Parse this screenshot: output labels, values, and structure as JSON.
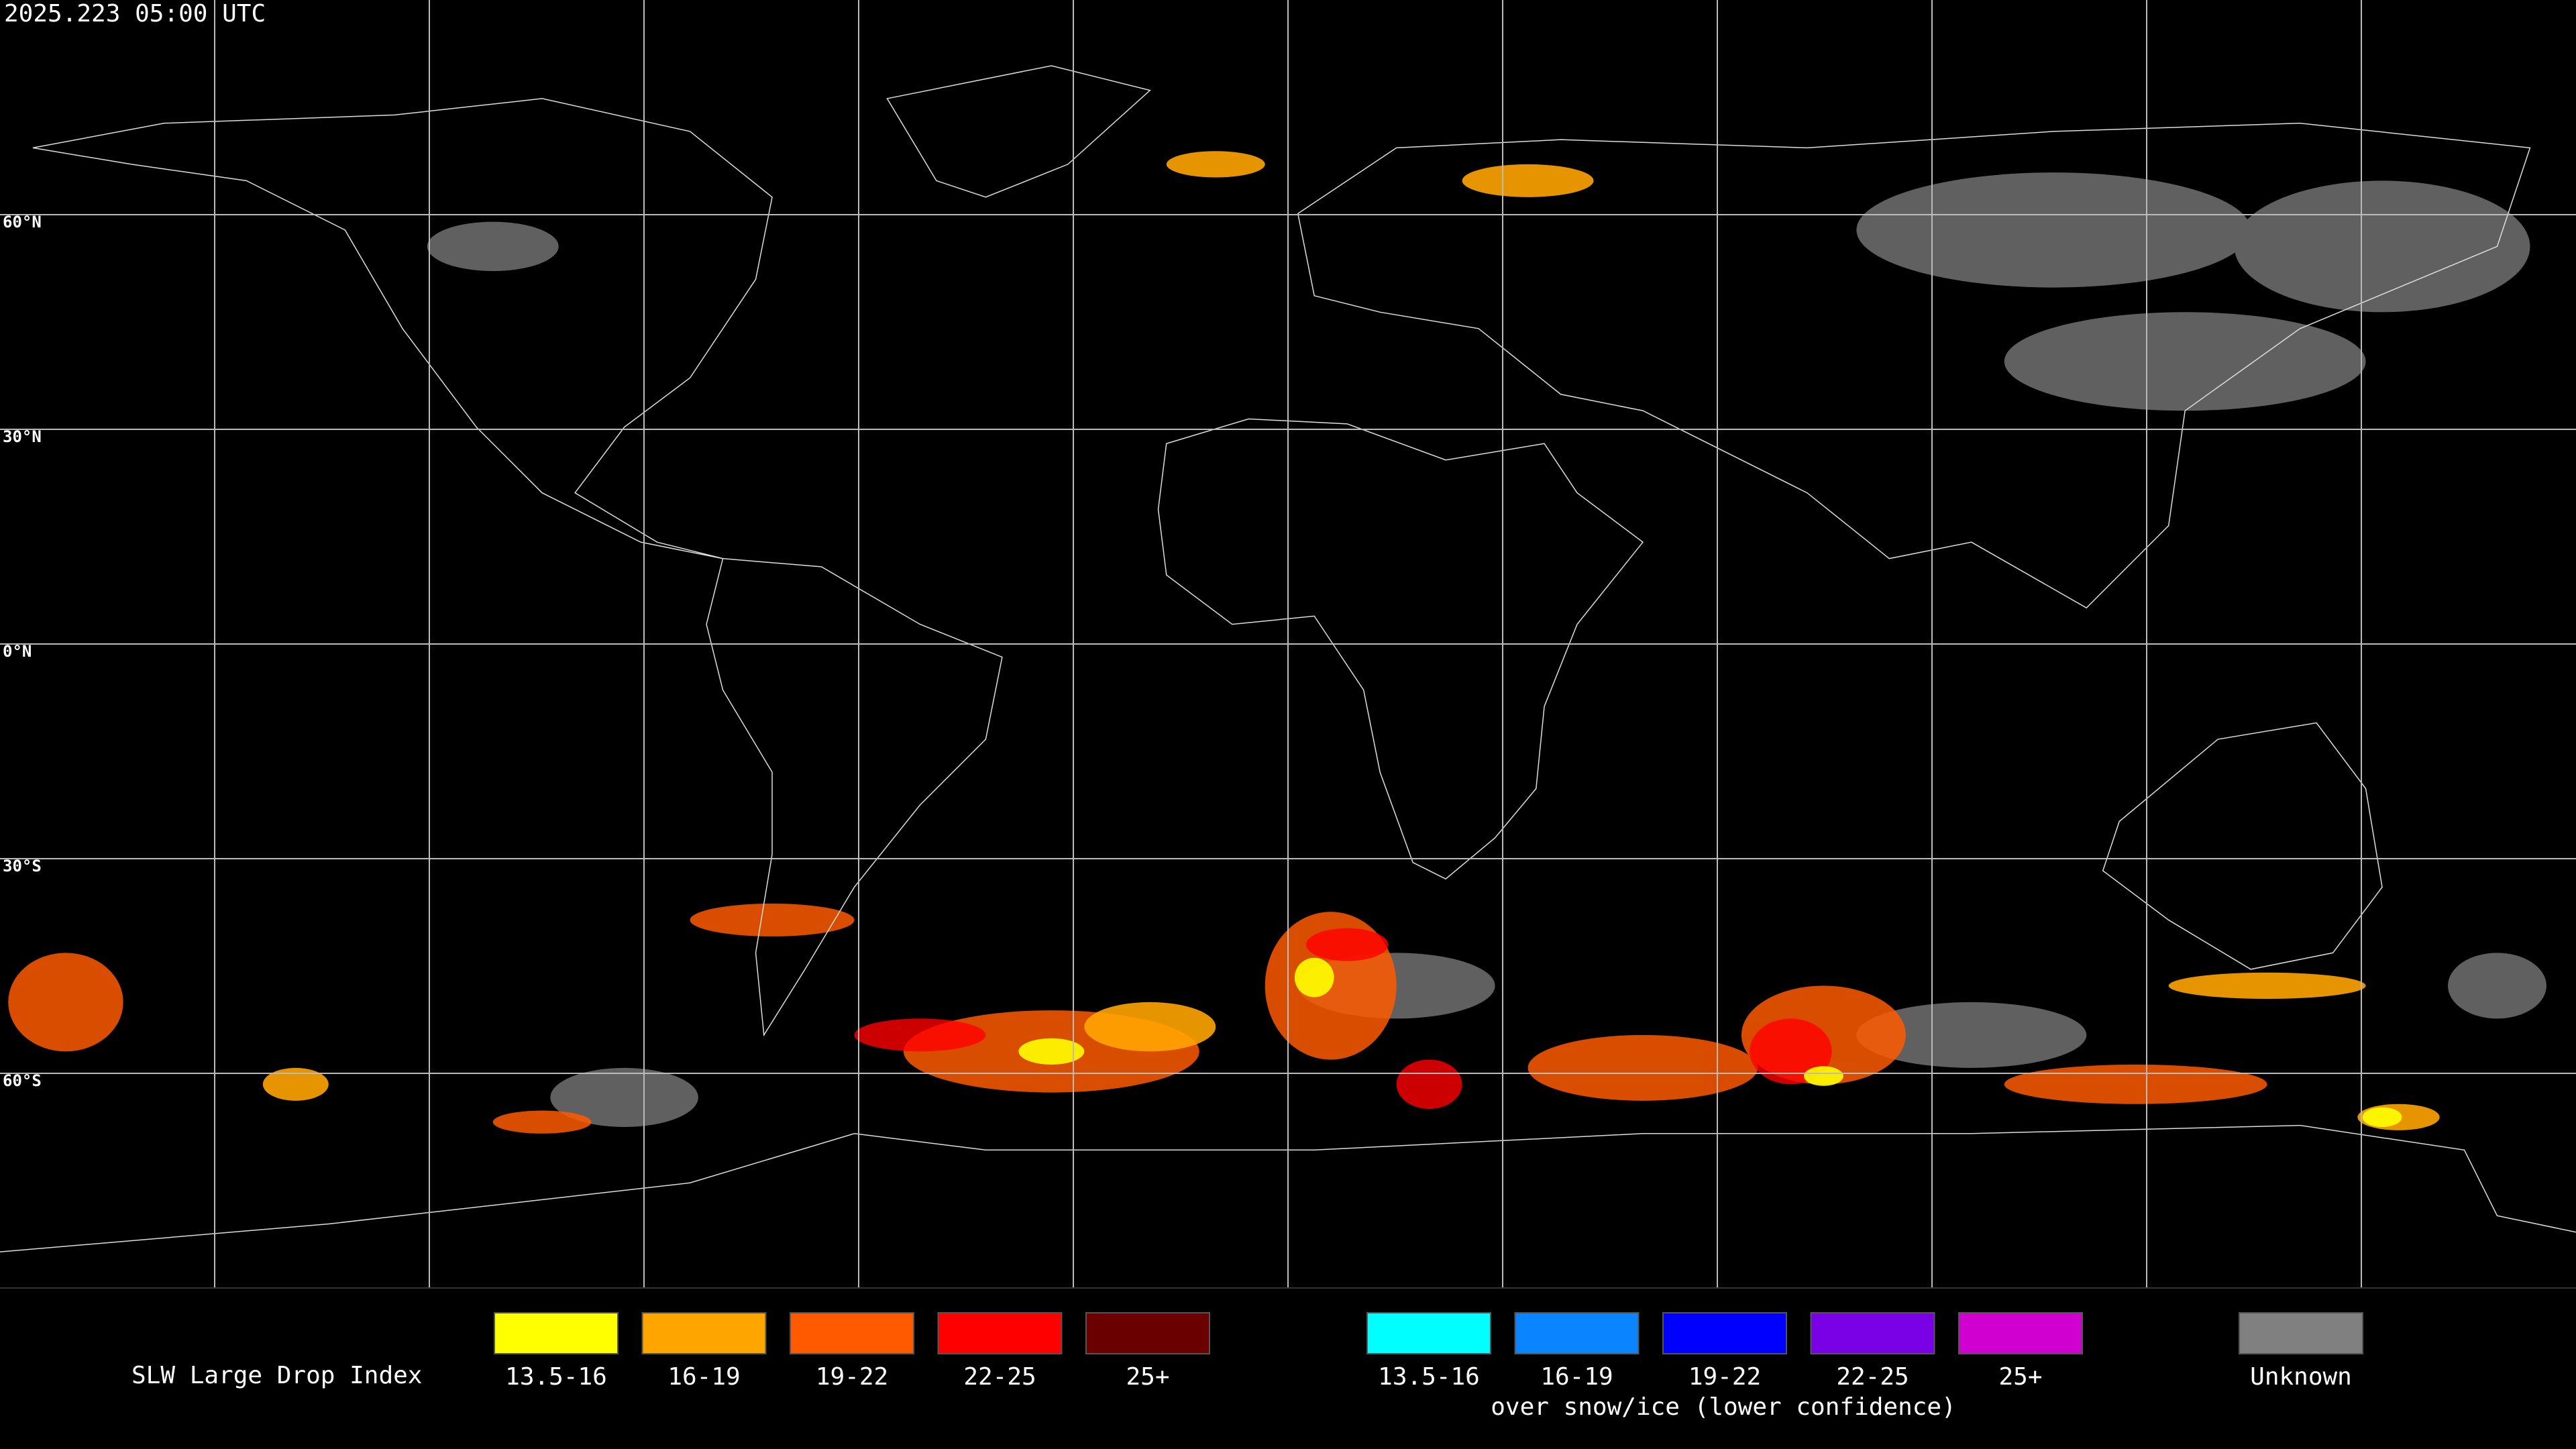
{
  "timestamp": "2025.223 05:00 UTC",
  "latitude_labels": [
    "60°N",
    "30°N",
    "0°N",
    "30°S",
    "60°S"
  ],
  "legend": {
    "title": "SLW Large Drop Index",
    "liquid": [
      {
        "label": "13.5-16",
        "color": "#ffff00"
      },
      {
        "label": "16-19",
        "color": "#ffa500"
      },
      {
        "label": "19-22",
        "color": "#ff5a00"
      },
      {
        "label": "22-25",
        "color": "#ff0000"
      },
      {
        "label": "25+",
        "color": "#6a0000"
      }
    ],
    "snow_ice": [
      {
        "label": "13.5-16",
        "color": "#00ffff"
      },
      {
        "label": "16-19",
        "color": "#0a84ff"
      },
      {
        "label": "19-22",
        "color": "#0000ff"
      },
      {
        "label": "22-25",
        "color": "#7a00e6"
      },
      {
        "label": "25+",
        "color": "#d000d0"
      }
    ],
    "snow_ice_caption": "over snow/ice (lower confidence)",
    "unknown": {
      "label": "Unknown",
      "color": "#808080"
    }
  }
}
